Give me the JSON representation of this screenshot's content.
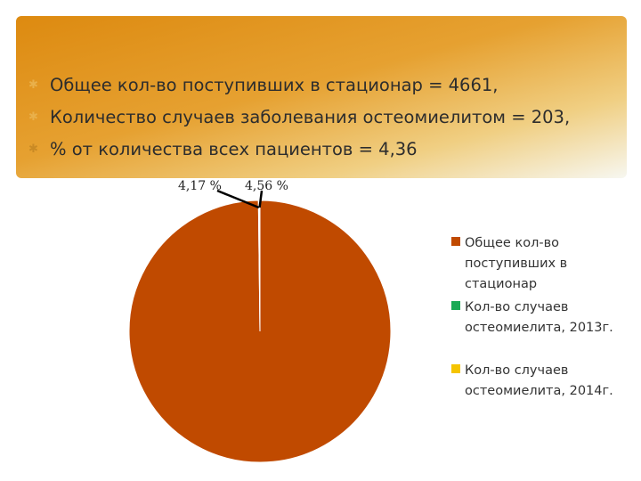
{
  "bullets": [
    "Общее кол-во поступивших в стационар = 4661,",
    "Количество случаев заболевания остеомиелитом = 203,",
    "% от количества всех пациентов = 4,36"
  ],
  "colors": {
    "header_orange": "#dd8a10",
    "slice_total": "#c04a00",
    "slice_2013": "#1aaa55",
    "slice_2014": "#f5c400"
  },
  "chart_data": {
    "type": "pie",
    "title": "",
    "slices": [
      {
        "name": "Общее кол-во поступивших в стационар",
        "legend_lines": [
          "Общее кол-во",
          "поступивших в",
          "стационар"
        ],
        "value": 4661,
        "color": "#c04a00"
      },
      {
        "name": "Кол-во случаев остеомиелита, 2013г.",
        "legend_lines": [
          "Кол-во случаев",
          "остеомиелита, 2013г."
        ],
        "value": 4.17,
        "label": "4,17 %",
        "color": "#1aaa55"
      },
      {
        "name": "Кол-во случаев остеомиелита, 2014г.",
        "legend_lines": [
          "Кол-во случаев",
          "остеомиелита, 2014г."
        ],
        "value": 4.56,
        "label": "4,56 %",
        "color": "#f5c400"
      }
    ],
    "legend_position": "right"
  }
}
